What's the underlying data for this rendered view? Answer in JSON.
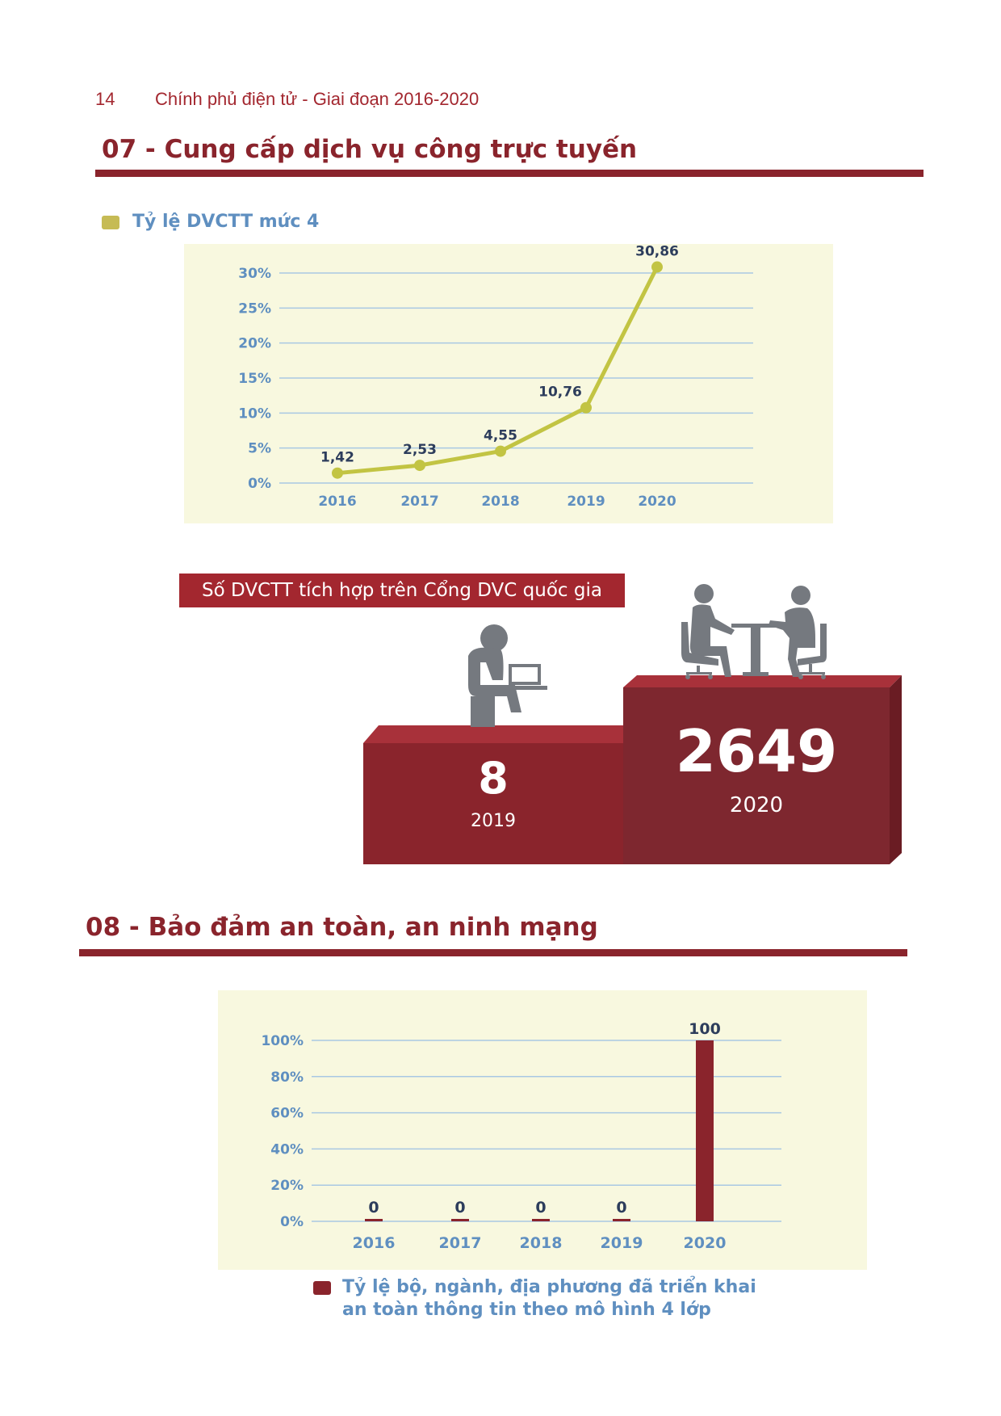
{
  "header": {
    "page_number": "14",
    "doc_title": "Chính phủ điện tử - Giai đoạn 2016-2020"
  },
  "sections": {
    "s07_title": "07 - Cung cấp dịch vụ công trực tuyến",
    "s08_title": "08 - Bảo đảm an toàn, an ninh mạng"
  },
  "colors": {
    "brand_red": "#8a242c",
    "line_green": "#c2c443",
    "axis_blue": "#5f8fc0",
    "chart_bg": "#f8f8df",
    "label_navy": "#2d3d5c"
  },
  "chart_data": [
    {
      "type": "line",
      "legend": "Tỷ lệ DVCTT mức 4",
      "categories": [
        "2016",
        "2017",
        "2018",
        "2019",
        "2020"
      ],
      "series": [
        {
          "name": "Tỷ lệ DVCTT mức 4",
          "values": [
            1.42,
            2.53,
            4.55,
            10.76,
            30.86
          ],
          "labels": [
            "1,42",
            "2,53",
            "4,55",
            "10,76",
            "30,86"
          ]
        }
      ],
      "yticks": [
        "0%",
        "5%",
        "10%",
        "15%",
        "20%",
        "25%",
        "30%"
      ],
      "ylim": [
        0,
        30
      ],
      "grid": true
    },
    {
      "type": "bar",
      "legend": "Tỷ lệ bộ, ngành, địa phương đã triển khai an toàn thông tin theo mô hình 4 lớp",
      "legend_lines": [
        "Tỷ lệ bộ, ngành, địa phương đã triển khai",
        "an toàn thông tin theo mô hình 4 lớp"
      ],
      "categories": [
        "2016",
        "2017",
        "2018",
        "2019",
        "2020"
      ],
      "series": [
        {
          "name": "Tỷ lệ bộ, ngành, địa phương đã triển khai an toàn thông tin theo mô hình 4 lớp",
          "values": [
            0,
            0,
            0,
            0,
            100
          ],
          "labels": [
            "0",
            "0",
            "0",
            "0",
            "100"
          ]
        }
      ],
      "yticks": [
        "0%",
        "20%",
        "40%",
        "60%",
        "80%",
        "100%"
      ],
      "ylim": [
        0,
        100
      ],
      "grid": true
    }
  ],
  "podium": {
    "title": "Số DVCTT tích hợp trên Cổng DVC quốc gia",
    "items": [
      {
        "value": "8",
        "year": "2019",
        "icon": "person-at-computer-icon"
      },
      {
        "value": "2649",
        "year": "2020",
        "icon": "two-people-meeting-icon"
      }
    ]
  }
}
